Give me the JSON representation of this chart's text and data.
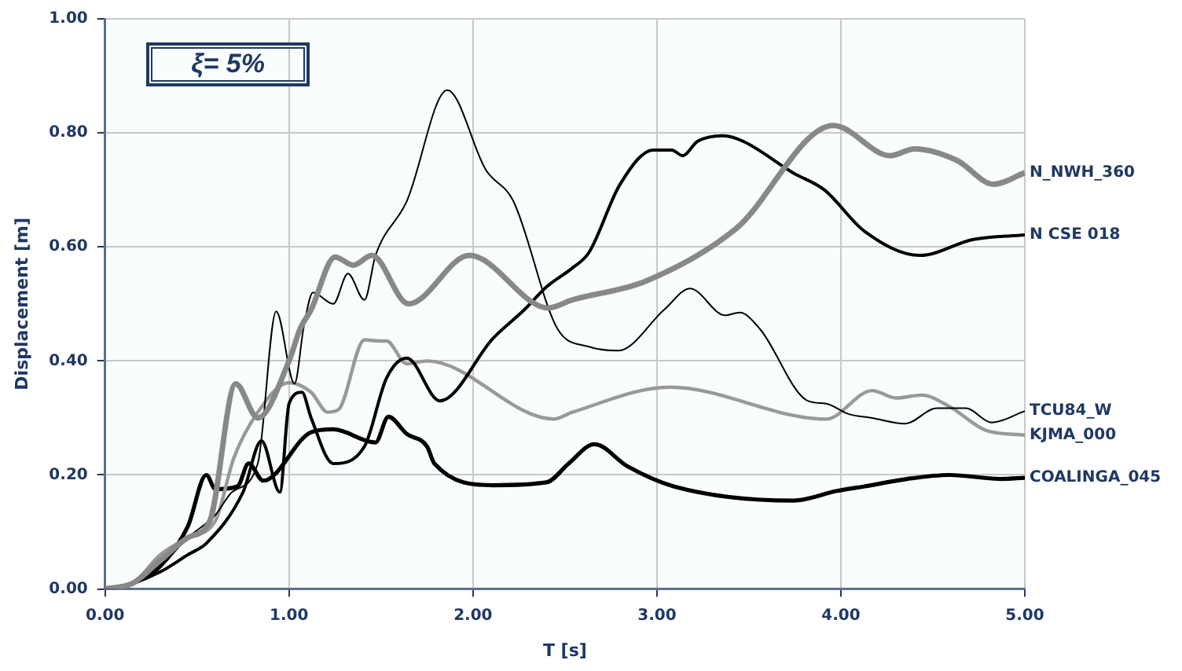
{
  "chart_data": {
    "type": "line",
    "xlabel": "T [s]",
    "ylabel": "Displacement [m]",
    "annotations": [
      "ξ= 5%"
    ],
    "xlim": [
      0,
      5
    ],
    "ylim": [
      0,
      1
    ],
    "xticks": [
      {
        "value": 0,
        "label": "0.00"
      },
      {
        "value": 1,
        "label": "1.00"
      },
      {
        "value": 2,
        "label": "2.00"
      },
      {
        "value": 3,
        "label": "3.00"
      },
      {
        "value": 4,
        "label": "4.00"
      },
      {
        "value": 5,
        "label": "5.00"
      }
    ],
    "yticks": [
      {
        "value": 0,
        "label": "0.00"
      },
      {
        "value": 0.2,
        "label": "0.20"
      },
      {
        "value": 0.4,
        "label": "0.40"
      },
      {
        "value": 0.6,
        "label": "0.60"
      },
      {
        "value": 0.8,
        "label": "0.80"
      },
      {
        "value": 1,
        "label": "1.00"
      }
    ],
    "grid": true,
    "legend": false,
    "line_style": "solid",
    "marker": "none",
    "series": [
      {
        "name": "N_NWH_360",
        "color": "#888888",
        "x": [
          0,
          0.15,
          0.3,
          0.45,
          0.57,
          0.71,
          0.83,
          1.0,
          1.06,
          1.12,
          1.25,
          1.35,
          1.45,
          1.65,
          1.98,
          2.41,
          2.54,
          2.94,
          3.43,
          3.96,
          4.27,
          4.4,
          4.63,
          4.83,
          5.0
        ],
        "values": [
          0,
          0.01,
          0.05,
          0.09,
          0.12,
          0.36,
          0.3,
          0.4,
          0.456,
          0.49,
          0.582,
          0.568,
          0.585,
          0.5,
          0.585,
          0.493,
          0.507,
          0.54,
          0.632,
          0.813,
          0.76,
          0.772,
          0.752,
          0.71,
          0.73
        ]
      },
      {
        "name": "N CSE 018",
        "color": "#000000",
        "x": [
          0,
          0.15,
          0.3,
          0.45,
          0.55,
          0.75,
          0.85,
          0.95,
          1.0,
          1.07,
          1.12,
          1.24,
          1.41,
          1.53,
          1.64,
          1.82,
          2.11,
          2.28,
          2.4,
          2.54,
          2.63,
          2.8,
          2.98,
          3.08,
          3.14,
          3.22,
          3.36,
          3.47,
          3.74,
          3.91,
          4.13,
          4.43,
          4.72,
          5.0
        ],
        "values": [
          0,
          0.01,
          0.03,
          0.06,
          0.08,
          0.17,
          0.26,
          0.17,
          0.325,
          0.345,
          0.3,
          0.22,
          0.25,
          0.37,
          0.405,
          0.33,
          0.44,
          0.49,
          0.53,
          0.563,
          0.59,
          0.71,
          0.77,
          0.77,
          0.76,
          0.785,
          0.795,
          0.785,
          0.73,
          0.7,
          0.627,
          0.585,
          0.613,
          0.621
        ]
      },
      {
        "name": "TCU84_W",
        "color": "#000000",
        "x": [
          0,
          0.15,
          0.3,
          0.45,
          0.6,
          0.69,
          0.83,
          0.93,
          1.03,
          1.08,
          1.13,
          1.24,
          1.32,
          1.41,
          1.47,
          1.64,
          1.86,
          2.07,
          2.22,
          2.46,
          2.63,
          2.79,
          3.04,
          3.18,
          3.37,
          3.45,
          3.56,
          3.82,
          3.92,
          4.04,
          4.17,
          4.35,
          4.52,
          4.68,
          4.82,
          5.0
        ],
        "values": [
          0,
          0.01,
          0.04,
          0.09,
          0.13,
          0.17,
          0.22,
          0.487,
          0.36,
          0.46,
          0.52,
          0.5,
          0.553,
          0.507,
          0.585,
          0.68,
          0.875,
          0.735,
          0.68,
          0.456,
          0.425,
          0.418,
          0.49,
          0.527,
          0.48,
          0.485,
          0.456,
          0.33,
          0.325,
          0.307,
          0.3,
          0.29,
          0.317,
          0.317,
          0.292,
          0.312
        ]
      },
      {
        "name": "KJMA_000",
        "color": "#999999",
        "x": [
          0,
          0.15,
          0.3,
          0.45,
          0.6,
          0.7,
          0.83,
          1.0,
          1.12,
          1.21,
          1.27,
          1.41,
          1.49,
          1.53,
          1.64,
          1.75,
          2.44,
          2.54,
          3.07,
          3.92,
          4.17,
          4.3,
          4.44,
          4.59,
          4.79,
          5.0
        ],
        "values": [
          0,
          0.01,
          0.06,
          0.09,
          0.12,
          0.23,
          0.31,
          0.362,
          0.345,
          0.31,
          0.315,
          0.437,
          0.435,
          0.435,
          0.395,
          0.4,
          0.298,
          0.31,
          0.354,
          0.298,
          0.348,
          0.335,
          0.34,
          0.32,
          0.278,
          0.27
        ]
      },
      {
        "name": "COALINGA_045",
        "color": "#000000",
        "x": [
          0,
          0.15,
          0.3,
          0.45,
          0.55,
          0.6,
          0.72,
          0.78,
          0.86,
          1.12,
          1.24,
          1.47,
          1.54,
          1.64,
          1.75,
          1.79,
          2.11,
          2.4,
          2.52,
          2.66,
          2.84,
          3.09,
          3.74,
          3.98,
          4.13,
          4.36,
          4.59,
          4.87,
          5.0
        ],
        "values": [
          0,
          0.01,
          0.04,
          0.11,
          0.2,
          0.175,
          0.18,
          0.22,
          0.19,
          0.275,
          0.28,
          0.257,
          0.302,
          0.272,
          0.25,
          0.22,
          0.182,
          0.187,
          0.22,
          0.254,
          0.215,
          0.18,
          0.155,
          0.172,
          0.18,
          0.193,
          0.2,
          0.193,
          0.195
        ]
      }
    ]
  }
}
